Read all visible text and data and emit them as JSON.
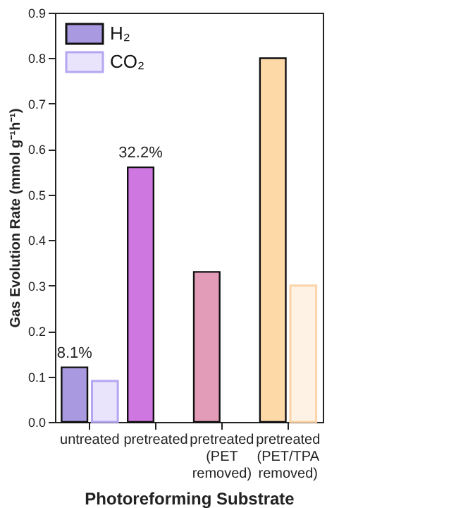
{
  "chart_data": {
    "type": "bar",
    "xlabel": "Photoreforming Substrate",
    "ylabel": "Gas Evolution Rate (mmol g⁻¹h⁻¹)",
    "categories": [
      "untreated",
      "pretreated",
      "pretreated (PET removed)",
      "pretreated (PET/TPA removed)"
    ],
    "series": [
      {
        "name": "H₂",
        "colors": [
          "#a899e0",
          "#cf77e0",
          "#e39cb7",
          "#fdd9a8"
        ],
        "values": [
          0.12,
          0.56,
          0.33,
          0.8
        ]
      },
      {
        "name": "CO₂",
        "colors": [
          "#b5a6f2",
          "#cf77e0",
          "#e39cb7",
          "#fcd3a6"
        ],
        "values": [
          0.09,
          null,
          null,
          0.3
        ]
      }
    ],
    "ylim": [
      0,
      0.9
    ],
    "yticks": [
      {
        "value": 0,
        "label": "0.0"
      },
      0.1,
      0.2,
      0.3,
      0.4,
      0.5,
      0.6,
      0.7,
      0.8,
      0.9
    ],
    "annotations": [
      {
        "text": "8.1%",
        "x": "untreated",
        "y": 0.12
      },
      {
        "text": "32.2%",
        "x": "pretreated",
        "y": 0.56
      }
    ],
    "legend": "top left",
    "grid": false
  }
}
